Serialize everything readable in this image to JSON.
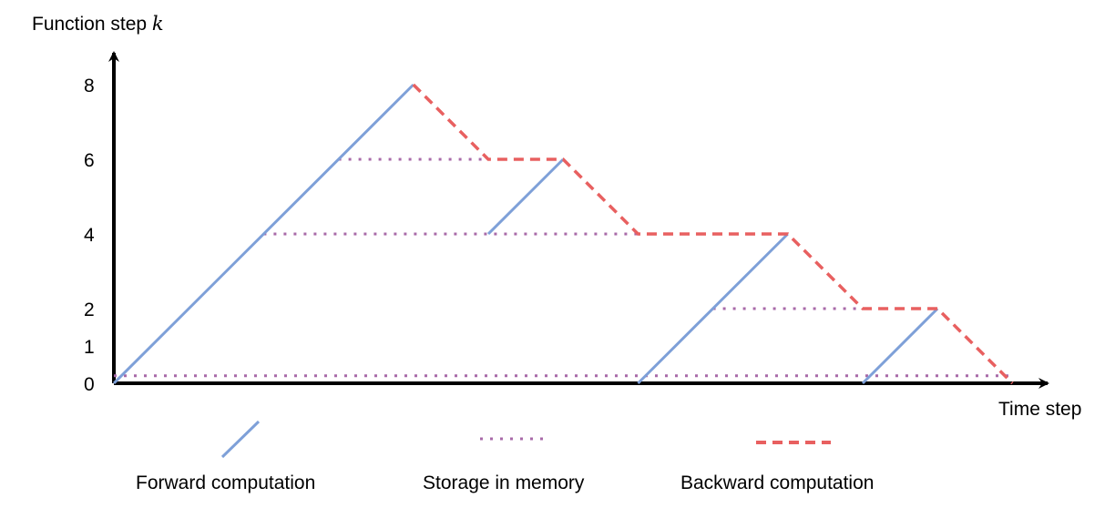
{
  "y_axis": {
    "label": "Function step ",
    "var": "k",
    "ticks": [
      "0",
      "1",
      "2",
      "4",
      "6",
      "8"
    ],
    "tick_values": [
      0,
      1,
      2,
      4,
      6,
      8
    ]
  },
  "x_axis": {
    "label": "Time step"
  },
  "legend": {
    "forward": "Forward computation",
    "storage": "Storage in memory",
    "backward": "Backward computation"
  },
  "colors": {
    "forward": "#7ea0d8",
    "storage": "#a86aa8",
    "backward": "#e86060",
    "axis": "#000000"
  },
  "segments": {
    "forward": [
      [
        [
          0,
          0
        ],
        [
          4,
          8
        ]
      ],
      [
        [
          5,
          4
        ],
        [
          6,
          6
        ]
      ],
      [
        [
          7,
          0
        ],
        [
          9,
          4
        ]
      ],
      [
        [
          10,
          0
        ],
        [
          11,
          2
        ]
      ]
    ],
    "storage": [
      [
        [
          0,
          0.2
        ],
        [
          12,
          0.2
        ]
      ],
      [
        [
          2,
          4
        ],
        [
          7,
          4
        ]
      ],
      [
        [
          3,
          6
        ],
        [
          5,
          6
        ]
      ],
      [
        [
          8,
          2
        ],
        [
          10,
          2
        ]
      ]
    ],
    "backward": [
      [
        [
          4,
          8
        ],
        [
          5,
          6
        ],
        [
          6,
          6
        ],
        [
          7,
          4
        ],
        [
          9,
          4
        ],
        [
          10,
          2
        ],
        [
          11,
          2
        ],
        [
          12,
          0
        ]
      ]
    ]
  }
}
